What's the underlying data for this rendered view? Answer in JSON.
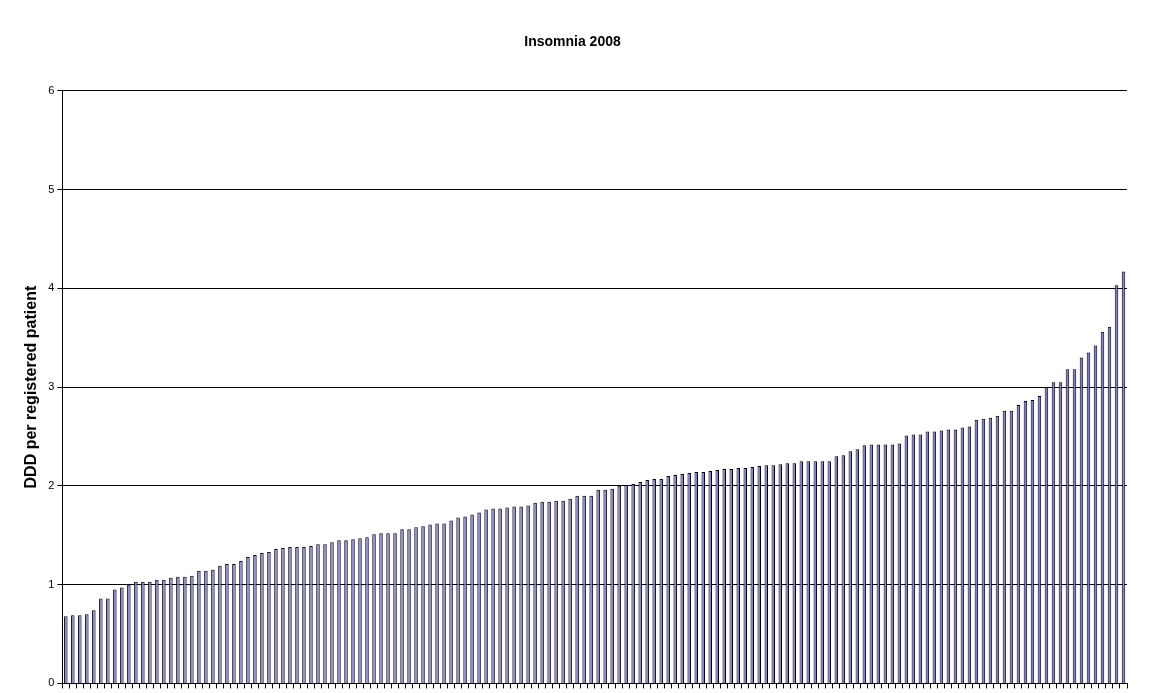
{
  "chart_data": {
    "type": "bar",
    "title": "Insomnia 2008",
    "ylabel": "DDD per registered patient",
    "categories": [
      null,
      null,
      null,
      null,
      null,
      null,
      null,
      null,
      null,
      null,
      null,
      null,
      null,
      null,
      null,
      null,
      null,
      null,
      null,
      null,
      null,
      null,
      null,
      null,
      null,
      null,
      null,
      null,
      null,
      null,
      null,
      null,
      null,
      null,
      null,
      null,
      null,
      null,
      null,
      null,
      null,
      null,
      null,
      null,
      null,
      null,
      null,
      null,
      null,
      null,
      null,
      null,
      null,
      null,
      null,
      null,
      null,
      null,
      null,
      null,
      null,
      null,
      null,
      null,
      null,
      null,
      null,
      null,
      null,
      null,
      null,
      null,
      null,
      null,
      null,
      null,
      null,
      null,
      null,
      null,
      null,
      null,
      null,
      null,
      null,
      null,
      null,
      null,
      null,
      null,
      null,
      null,
      null,
      null,
      null,
      null,
      null,
      null,
      null,
      null,
      null,
      null,
      null,
      null,
      null,
      null,
      null,
      null,
      null,
      null,
      null,
      null,
      null,
      null,
      null,
      null,
      null,
      null,
      null,
      null,
      null,
      null,
      null,
      null,
      null,
      null,
      null,
      null,
      null,
      null,
      null,
      null,
      null,
      null,
      null,
      null,
      null,
      null,
      null,
      null,
      null,
      null,
      null,
      null,
      null,
      null,
      null,
      null,
      null,
      null,
      null,
      null
    ],
    "values": [
      0.68,
      0.69,
      0.69,
      0.7,
      0.74,
      0.86,
      0.86,
      0.95,
      0.97,
      1.0,
      1.03,
      1.03,
      1.03,
      1.05,
      1.05,
      1.07,
      1.08,
      1.08,
      1.09,
      1.14,
      1.14,
      1.15,
      1.19,
      1.21,
      1.21,
      1.24,
      1.28,
      1.3,
      1.32,
      1.33,
      1.36,
      1.37,
      1.38,
      1.38,
      1.38,
      1.39,
      1.41,
      1.41,
      1.43,
      1.45,
      1.45,
      1.46,
      1.47,
      1.48,
      1.51,
      1.52,
      1.52,
      1.52,
      1.56,
      1.56,
      1.58,
      1.59,
      1.61,
      1.62,
      1.62,
      1.65,
      1.68,
      1.69,
      1.71,
      1.73,
      1.76,
      1.77,
      1.77,
      1.78,
      1.79,
      1.79,
      1.8,
      1.83,
      1.84,
      1.84,
      1.85,
      1.85,
      1.87,
      1.9,
      1.9,
      1.9,
      1.96,
      1.96,
      1.97,
      2.0,
      2.01,
      2.02,
      2.04,
      2.06,
      2.07,
      2.07,
      2.1,
      2.11,
      2.12,
      2.13,
      2.14,
      2.14,
      2.15,
      2.16,
      2.17,
      2.17,
      2.18,
      2.18,
      2.19,
      2.2,
      2.21,
      2.21,
      2.22,
      2.23,
      2.23,
      2.25,
      2.25,
      2.25,
      2.25,
      2.25,
      2.3,
      2.31,
      2.35,
      2.37,
      2.41,
      2.42,
      2.42,
      2.42,
      2.42,
      2.43,
      2.51,
      2.52,
      2.52,
      2.55,
      2.55,
      2.56,
      2.57,
      2.57,
      2.59,
      2.6,
      2.67,
      2.68,
      2.69,
      2.71,
      2.76,
      2.76,
      2.82,
      2.86,
      2.87,
      2.91,
      3.0,
      3.05,
      3.05,
      3.18,
      3.18,
      3.3,
      3.35,
      3.42,
      3.56,
      3.61,
      4.03,
      4.17
    ],
    "color": "#8080d8",
    "ylim": [
      0,
      6
    ],
    "yticks": [
      0,
      1,
      2,
      3,
      4,
      5,
      6
    ],
    "grid": "y"
  }
}
